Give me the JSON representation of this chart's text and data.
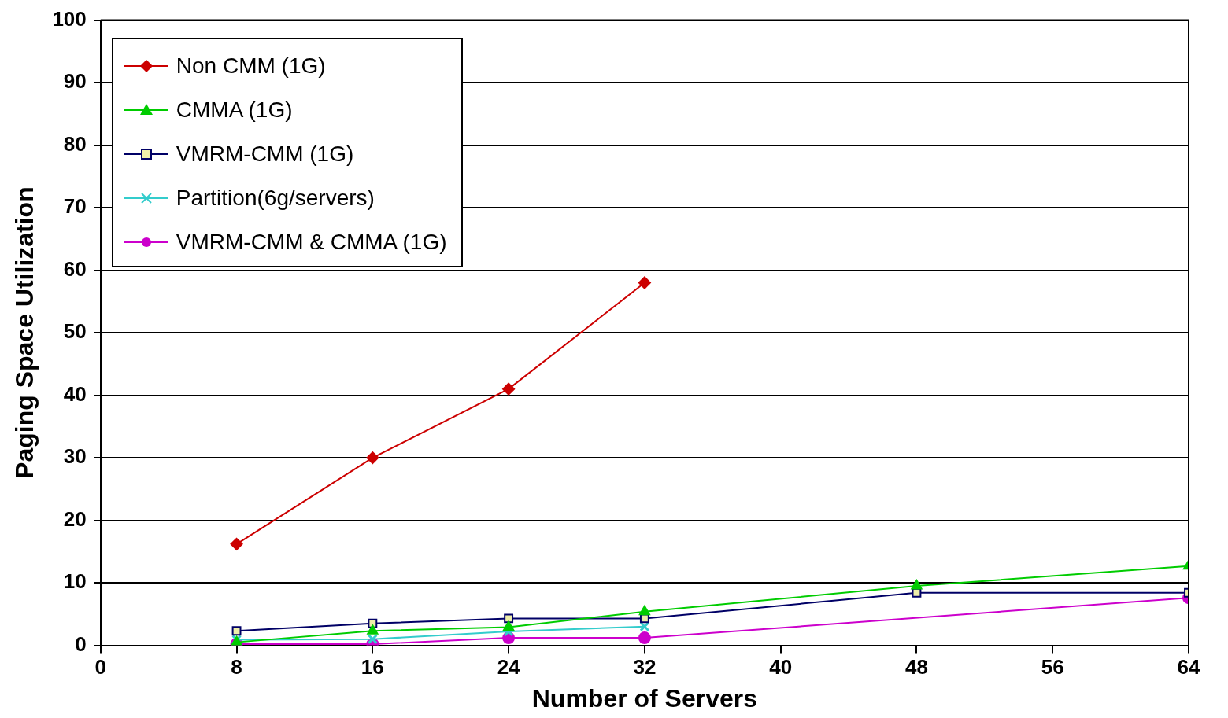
{
  "chart_data": {
    "type": "line",
    "xlabel": "Number of Servers",
    "ylabel": "Paging Space Utilization",
    "xlim": [
      0,
      64
    ],
    "xticks": [
      0,
      8,
      16,
      24,
      32,
      40,
      48,
      56,
      64
    ],
    "ylim": [
      0,
      100
    ],
    "yticks": [
      0,
      10,
      20,
      30,
      40,
      50,
      60,
      70,
      80,
      90,
      100
    ],
    "grid": "y",
    "legend": "top left",
    "line_style": "solid",
    "series": [
      {
        "name": "Non CMM (1G)",
        "color": "#cc0000",
        "marker": "diamond",
        "x": [
          8,
          16,
          24,
          32
        ],
        "values": [
          16.2,
          30,
          41,
          58
        ]
      },
      {
        "name": "CMMA (1G)",
        "color": "#00cc00",
        "marker": "triangle",
        "x": [
          8,
          16,
          24,
          32,
          48,
          64
        ],
        "values": [
          0.5,
          2.3,
          2.9,
          5.4,
          9.5,
          12.7
        ]
      },
      {
        "name": "VMRM-CMM (1G)",
        "color": "#000066",
        "marker": "square",
        "x": [
          8,
          16,
          24,
          32,
          48,
          64
        ],
        "values": [
          2.3,
          3.5,
          4.3,
          4.3,
          8.4,
          8.4
        ]
      },
      {
        "name": "Partition(6g/servers)",
        "color": "#33cccc",
        "marker": "cross",
        "x": [
          8,
          16,
          24,
          32
        ],
        "values": [
          0.9,
          1,
          2.2,
          3
        ]
      },
      {
        "name": "VMRM-CMM & CMMA (1G)",
        "color": "#cc00cc",
        "marker": "circle",
        "x": [
          8,
          16,
          24,
          32,
          64
        ],
        "values": [
          0.2,
          0.2,
          1.2,
          1.2,
          7.6
        ]
      }
    ]
  }
}
